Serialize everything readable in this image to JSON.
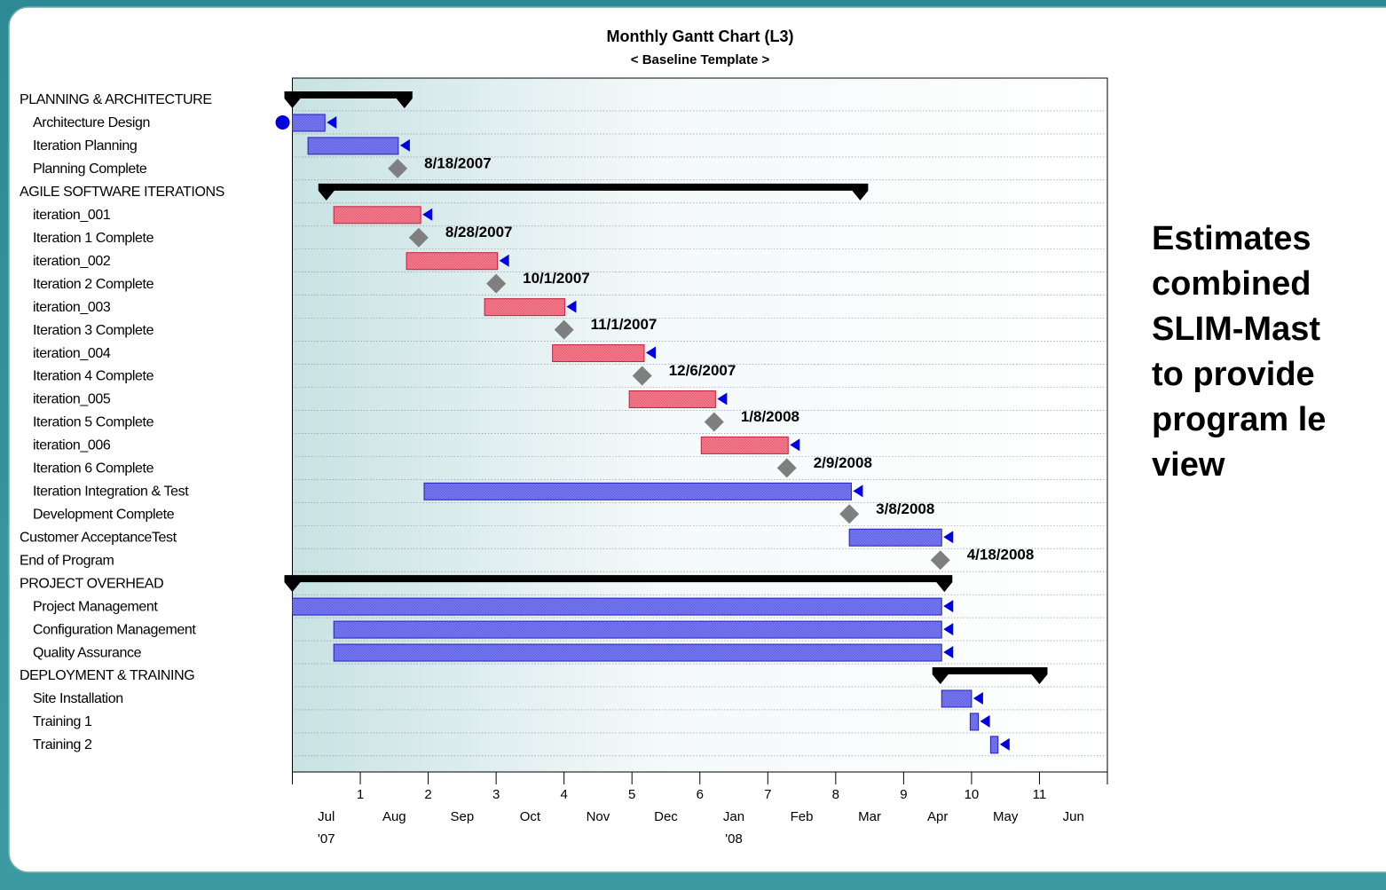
{
  "chart_data": {
    "type": "gantt",
    "title": "Monthly Gantt Chart  (L3)",
    "subtitle": "< Baseline Template >",
    "xlim": [
      0,
      12
    ],
    "xticks": [
      1,
      2,
      3,
      4,
      5,
      6,
      7,
      8,
      9,
      10,
      11
    ],
    "categories": [
      "Jul",
      "Aug",
      "Sep",
      "Oct",
      "Nov",
      "Dec",
      "Jan",
      "Feb",
      "Mar",
      "Apr",
      "May",
      "Jun"
    ],
    "category_years": [
      "'07",
      null,
      null,
      null,
      null,
      null,
      "'08",
      null,
      null,
      null,
      null,
      null
    ],
    "grid": true,
    "colors": {
      "summary": "#000000",
      "task": "#7878f0",
      "iteration": "#f27c8c",
      "milestone": "#7f7f7f"
    },
    "tasks": [
      {
        "name": "PLANNING & ARCHITECTURE",
        "level": 0,
        "kind": "summary",
        "start": 0,
        "end": 1.65
      },
      {
        "name": "Architecture Design",
        "level": 1,
        "kind": "task",
        "start": 0,
        "end": 0.48
      },
      {
        "name": "Iteration Planning",
        "level": 1,
        "kind": "task",
        "start": 0.23,
        "end": 1.56
      },
      {
        "name": "Planning Complete",
        "level": 1,
        "kind": "milestone",
        "at": 1.55,
        "label": "8/18/2007"
      },
      {
        "name": "AGILE SOFTWARE ITERATIONS",
        "level": 0,
        "kind": "summary",
        "start": 0.5,
        "end": 8.36
      },
      {
        "name": "iteration_001",
        "level": 1,
        "kind": "iteration",
        "start": 0.61,
        "end": 1.89
      },
      {
        "name": "Iteration 1 Complete",
        "level": 1,
        "kind": "milestone",
        "at": 1.86,
        "label": "8/28/2007"
      },
      {
        "name": "iteration_002",
        "level": 1,
        "kind": "iteration",
        "start": 1.68,
        "end": 3.02
      },
      {
        "name": "Iteration 2 Complete",
        "level": 1,
        "kind": "milestone",
        "at": 3.0,
        "label": "10/1/2007"
      },
      {
        "name": "iteration_003",
        "level": 1,
        "kind": "iteration",
        "start": 2.83,
        "end": 4.01
      },
      {
        "name": "Iteration 3 Complete",
        "level": 1,
        "kind": "milestone",
        "at": 4.0,
        "label": "11/1/2007"
      },
      {
        "name": "iteration_004",
        "level": 1,
        "kind": "iteration",
        "start": 3.83,
        "end": 5.18
      },
      {
        "name": "Iteration 4 Complete",
        "level": 1,
        "kind": "milestone",
        "at": 5.15,
        "label": "12/6/2007"
      },
      {
        "name": "iteration_005",
        "level": 1,
        "kind": "iteration",
        "start": 4.96,
        "end": 6.23
      },
      {
        "name": "Iteration 5 Complete",
        "level": 1,
        "kind": "milestone",
        "at": 6.21,
        "label": "1/8/2008"
      },
      {
        "name": "iteration_006",
        "level": 1,
        "kind": "iteration",
        "start": 6.02,
        "end": 7.3
      },
      {
        "name": "Iteration 6 Complete",
        "level": 1,
        "kind": "milestone",
        "at": 7.28,
        "label": "2/9/2008"
      },
      {
        "name": "Iteration Integration & Test",
        "level": 1,
        "kind": "task",
        "start": 1.94,
        "end": 8.23
      },
      {
        "name": "Development Complete",
        "level": 1,
        "kind": "milestone",
        "at": 8.2,
        "label": "3/8/2008"
      },
      {
        "name": "Customer AcceptanceTest",
        "level": 0,
        "kind": "task",
        "start": 8.2,
        "end": 9.56
      },
      {
        "name": "End of Program",
        "level": 0,
        "kind": "milestone",
        "at": 9.54,
        "label": "4/18/2008"
      },
      {
        "name": "PROJECT OVERHEAD",
        "level": 0,
        "kind": "summary",
        "start": 0,
        "end": 9.6
      },
      {
        "name": "Project Management",
        "level": 1,
        "kind": "task",
        "start": 0,
        "end": 9.56
      },
      {
        "name": "Configuration Management",
        "level": 1,
        "kind": "task",
        "start": 0.61,
        "end": 9.56
      },
      {
        "name": "Quality Assurance",
        "level": 1,
        "kind": "task",
        "start": 0.61,
        "end": 9.56
      },
      {
        "name": "DEPLOYMENT & TRAINING",
        "level": 0,
        "kind": "summary",
        "start": 9.54,
        "end": 11.0
      },
      {
        "name": "Site Installation",
        "level": 1,
        "kind": "task",
        "start": 9.56,
        "end": 10.0
      },
      {
        "name": "Training 1",
        "level": 1,
        "kind": "task",
        "start": 9.98,
        "end": 10.1
      },
      {
        "name": "Training 2",
        "level": 1,
        "kind": "task",
        "start": 10.28,
        "end": 10.39
      }
    ]
  },
  "side_text": [
    "Estimates",
    "combined",
    "SLIM-Mast",
    "to provide",
    "program le",
    "view"
  ]
}
